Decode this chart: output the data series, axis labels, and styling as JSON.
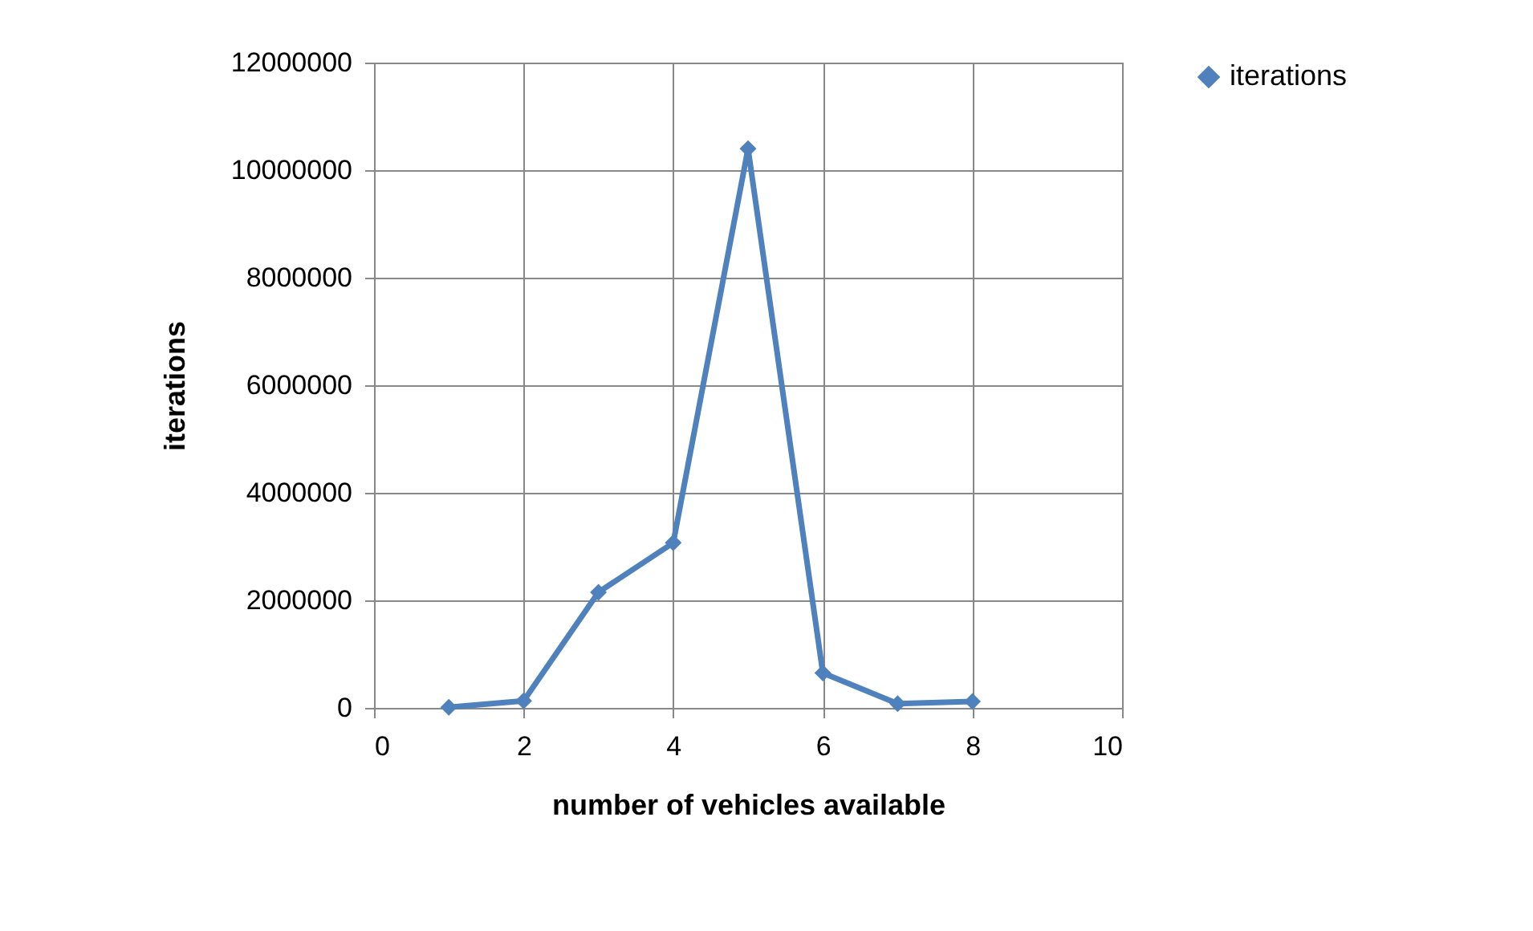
{
  "chart_data": {
    "type": "line",
    "xlabel": "number of vehicles available",
    "ylabel": "iterations",
    "x": [
      1,
      2,
      3,
      4,
      5,
      6,
      7,
      8
    ],
    "series": [
      {
        "name": "iterations",
        "color": "#4f81bd",
        "values": [
          10000,
          130000,
          2150000,
          3070000,
          10400000,
          650000,
          80000,
          120000
        ]
      }
    ],
    "xlim": [
      0,
      10
    ],
    "xticks": [
      0,
      2,
      4,
      6,
      8,
      10
    ],
    "ylim": [
      0,
      12000000
    ],
    "yticks": [
      0,
      2000000,
      4000000,
      6000000,
      8000000,
      10000000,
      12000000
    ],
    "grid": true,
    "legend": "right",
    "marker": "diamond",
    "line_style": "solid"
  }
}
